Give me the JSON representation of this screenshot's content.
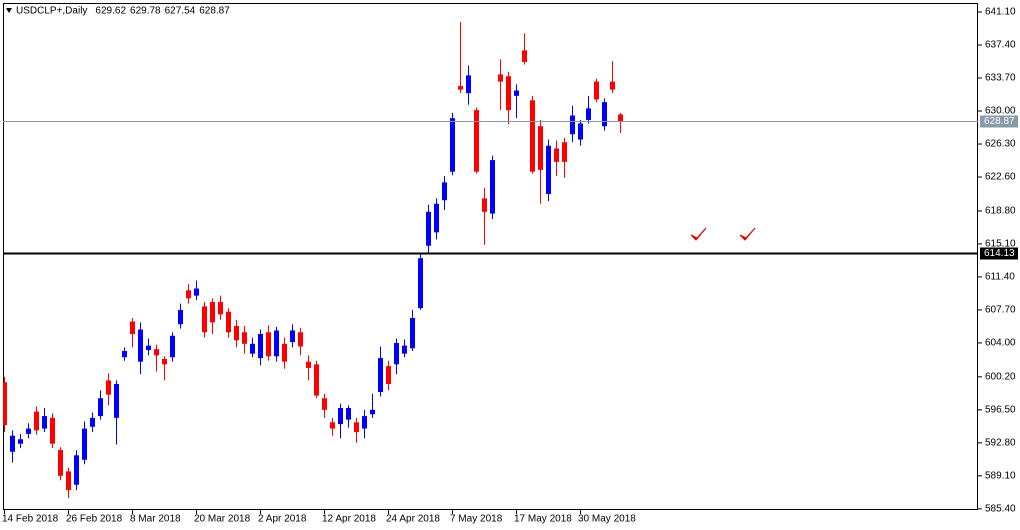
{
  "chart_data": {
    "type": "candlestick",
    "title": "USDCLP+,Daily",
    "up_color": "#0000ff",
    "down_color": "#ff0000",
    "categories": [
      "14 Feb 2018",
      null,
      null,
      null,
      null,
      null,
      null,
      null,
      "26 Feb 2018",
      null,
      null,
      null,
      null,
      null,
      null,
      null,
      "8 Mar 2018",
      null,
      null,
      null,
      null,
      null,
      null,
      null,
      "20 Mar 2018",
      null,
      null,
      null,
      null,
      null,
      null,
      null,
      "2 Apr 2018",
      null,
      null,
      null,
      null,
      null,
      null,
      null,
      "12 Apr 2018",
      null,
      null,
      null,
      null,
      null,
      null,
      null,
      "24 Apr 2018",
      null,
      null,
      null,
      null,
      null,
      null,
      null,
      "7 May 2018",
      null,
      null,
      null,
      null,
      null,
      null,
      null,
      "17 May 2018",
      null,
      null,
      null,
      null,
      null,
      null,
      null,
      "30 May 2018",
      null,
      null,
      null,
      null,
      null
    ],
    "open": [
      599.6,
      591.8,
      592.7,
      593.8,
      596.3,
      594.4,
      595.6,
      592.0,
      589.6,
      588.1,
      590.9,
      594.6,
      595.8,
      599.8,
      595.6,
      602.4,
      606.4,
      601.9,
      603.2,
      603.3,
      602.2,
      602.4,
      606.1,
      609.9,
      609.3,
      608.1,
      608.6,
      608.6,
      607.5,
      605.9,
      605.2,
      602.8,
      602.3,
      605.2,
      602.5,
      603.9,
      604.1,
      605.2,
      601.9,
      601.6,
      597.8,
      595.1,
      594.9,
      595.4,
      595.1,
      594.4,
      596.0,
      598.5,
      601.4,
      601.6,
      602.8,
      603.4,
      607.9,
      614.9,
      616.4,
      620.0,
      623.2,
      632.8,
      632.0,
      630.1,
      620.2,
      618.5,
      634.1,
      633.9,
      631.7,
      636.8,
      631.2,
      628.3,
      620.7,
      625.8,
      626.5,
      627.4,
      626.8,
      629.0,
      633.3,
      628.3,
      633.3,
      629.62
    ],
    "high": [
      600.2,
      594.2,
      593.8,
      595.0,
      596.9,
      596.7,
      596.1,
      592.3,
      590.0,
      592.0,
      595.2,
      596.2,
      598.7,
      600.6,
      599.8,
      603.5,
      606.8,
      606.3,
      604.5,
      603.8,
      602.5,
      605.2,
      608.4,
      610.6,
      611.0,
      608.6,
      609.0,
      609.3,
      607.9,
      606.6,
      605.9,
      604.6,
      605.5,
      606.0,
      605.8,
      604.6,
      606.1,
      605.7,
      602.6,
      602.0,
      598.3,
      595.6,
      597.2,
      597.0,
      595.6,
      596.5,
      598.3,
      603.6,
      602.0,
      604.5,
      604.4,
      607.7,
      614.0,
      619.5,
      620.2,
      622.7,
      629.8,
      640.0,
      635.1,
      630.4,
      621.4,
      625.0,
      635.8,
      634.4,
      633.0,
      638.7,
      631.7,
      629.0,
      626.8,
      626.7,
      627.0,
      630.6,
      629.0,
      631.7,
      633.6,
      631.4,
      635.6,
      629.78
    ],
    "low": [
      594.0,
      590.6,
      592.2,
      593.3,
      593.7,
      594.0,
      592.2,
      588.6,
      586.6,
      587.5,
      590.4,
      594.0,
      595.4,
      597.0,
      592.6,
      602.0,
      603.5,
      600.5,
      602.6,
      600.8,
      599.8,
      601.9,
      605.6,
      608.4,
      608.8,
      604.6,
      605.0,
      606.6,
      604.6,
      603.5,
      602.8,
      602.4,
      601.5,
      602.0,
      601.9,
      601.1,
      603.5,
      602.6,
      599.8,
      597.8,
      595.6,
      593.6,
      593.3,
      594.5,
      592.8,
      593.3,
      595.6,
      598.0,
      598.7,
      600.5,
      602.4,
      603.1,
      607.7,
      614.1,
      615.6,
      618.9,
      622.8,
      632.0,
      630.7,
      623.0,
      615.0,
      617.9,
      630.1,
      628.5,
      629.2,
      635.2,
      623.0,
      619.6,
      619.9,
      622.7,
      622.5,
      626.5,
      626.1,
      628.6,
      631.0,
      627.8,
      632.0,
      627.54
    ],
    "close": [
      594.8,
      593.6,
      593.2,
      594.4,
      594.2,
      595.8,
      592.7,
      589.1,
      587.5,
      591.4,
      594.4,
      595.6,
      597.8,
      598.2,
      599.4,
      603.1,
      605.0,
      605.5,
      603.7,
      602.6,
      601.6,
      604.8,
      607.7,
      609.0,
      610.1,
      605.2,
      606.3,
      607.2,
      605.2,
      604.3,
      603.9,
      603.9,
      605.0,
      602.5,
      605.4,
      601.9,
      605.4,
      603.6,
      601.2,
      598.1,
      596.5,
      594.4,
      596.7,
      596.7,
      594.0,
      595.8,
      596.5,
      602.3,
      599.4,
      604.0,
      603.7,
      606.8,
      613.5,
      618.7,
      619.6,
      622.0,
      629.2,
      632.4,
      634.0,
      623.2,
      618.7,
      624.5,
      633.3,
      630.1,
      632.3,
      635.5,
      623.2,
      623.4,
      626.1,
      624.3,
      624.3,
      629.5,
      628.6,
      630.3,
      631.3,
      631.0,
      632.4,
      628.87
    ],
    "ylim": [
      585.27,
      642.11
    ],
    "yticks": [
      {
        "value": 641.1,
        "label": "641.10"
      },
      {
        "value": 637.4,
        "label": "637.40"
      },
      {
        "value": 633.7,
        "label": "633.70"
      },
      {
        "value": 630.0,
        "label": "630.00"
      },
      {
        "value": 626.3,
        "label": "626.30"
      },
      {
        "value": 622.6,
        "label": "622.60"
      },
      {
        "value": 618.8,
        "label": "618.80"
      },
      {
        "value": 615.1,
        "label": "615.10"
      },
      {
        "value": 611.4,
        "label": "611.40"
      },
      {
        "value": 607.7,
        "label": "607.70"
      },
      {
        "value": 604.0,
        "label": "604.00"
      },
      {
        "value": 600.2,
        "label": "600.20"
      },
      {
        "value": 596.5,
        "label": "596.50"
      },
      {
        "value": 592.8,
        "label": "592.80"
      },
      {
        "value": 589.1,
        "label": "589.10"
      },
      {
        "value": 585.4,
        "label": "585.40"
      }
    ],
    "lines": [
      {
        "value": 628.87,
        "color": "#8899aa",
        "width": 1
      },
      {
        "value": 614.13,
        "color": "#000000",
        "width": 2
      }
    ]
  }
}
